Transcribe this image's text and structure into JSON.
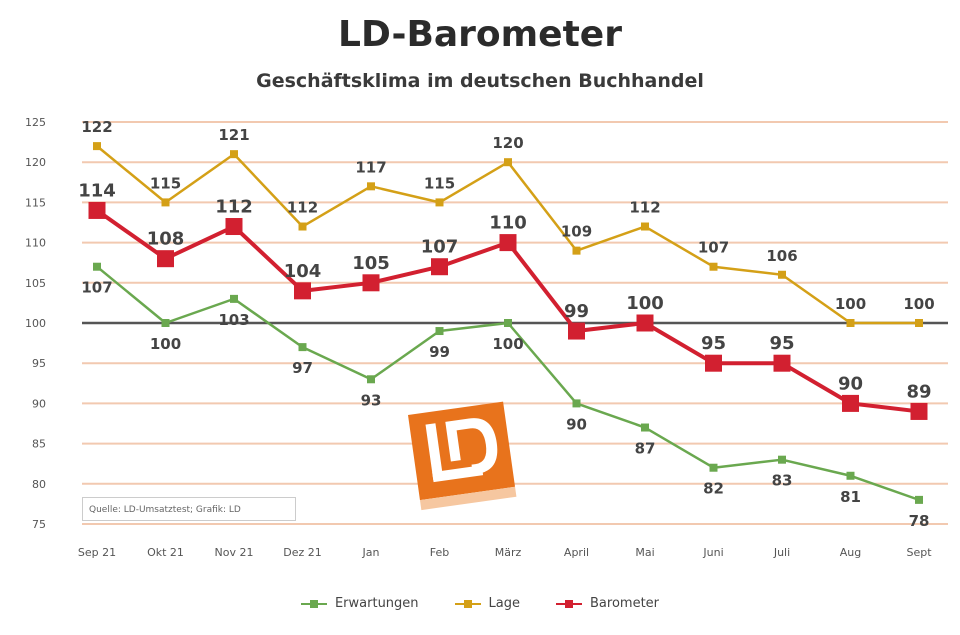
{
  "title": "LD-Barometer",
  "subtitle": "Geschäftsklima im deutschen Buchhandel",
  "source": "Quelle: LD-Umsatztest; Grafik: LD",
  "logo": {
    "text": "LD",
    "color": "#e8731c"
  },
  "colors": {
    "Erwartungen": "#6aa84f",
    "Lage": "#d4a017",
    "Barometer": "#d22030",
    "gridline": "#f2c9b0",
    "baseline": "#555555"
  },
  "chart_data": {
    "type": "line",
    "title": "LD-Barometer",
    "subtitle": "Geschäftsklima im deutschen Buchhandel",
    "categories": [
      "Sep 21",
      "Okt 21",
      "Nov 21",
      "Dez 21",
      "Jan",
      "Feb",
      "März",
      "April",
      "Mai",
      "Juni",
      "Juli",
      "Aug",
      "Sept"
    ],
    "ylim": [
      75,
      125
    ],
    "yticks": [
      75,
      80,
      85,
      90,
      95,
      100,
      105,
      110,
      115,
      120,
      125
    ],
    "reference_line": 100,
    "grid": true,
    "legend_position": "bottom",
    "series": [
      {
        "name": "Erwartungen",
        "values": [
          107,
          100,
          103,
          97,
          93,
          99,
          100,
          90,
          87,
          82,
          83,
          81,
          78
        ]
      },
      {
        "name": "Lage",
        "values": [
          122,
          115,
          121,
          112,
          117,
          115,
          120,
          109,
          112,
          107,
          106,
          100,
          100
        ]
      },
      {
        "name": "Barometer",
        "values": [
          114,
          108,
          112,
          104,
          105,
          107,
          110,
          99,
          100,
          95,
          95,
          90,
          89
        ]
      }
    ]
  }
}
